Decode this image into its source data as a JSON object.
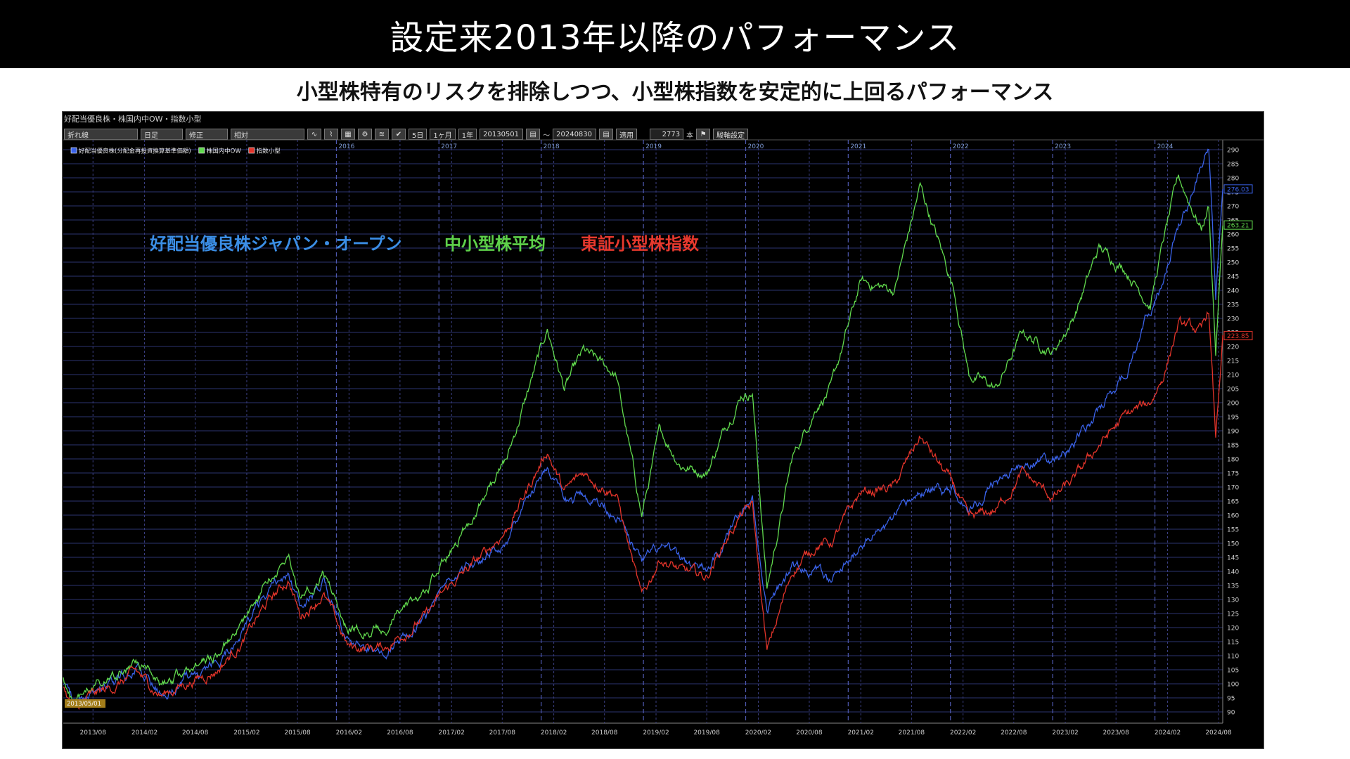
{
  "title": "設定来2013年以降のパフォーマンス",
  "subtitle": "小型株特有のリスクを排除しつつ、小型株指数を安定的に上回るパフォーマンス",
  "panel": {
    "title": "好配当優良株・株国内中OW・指数小型",
    "toolbar": {
      "field1": "折れ線",
      "field2": "日足",
      "field3": "修正",
      "field4": "相対",
      "btn_5d": "5日",
      "btn_1m": "1ヶ月",
      "btn_1y": "1年",
      "start_date": "20130501",
      "tilde": "〜",
      "end_date": "20240830",
      "apply": "適用",
      "count": "2773",
      "count_unit": "本",
      "settings": "駿軸設定"
    },
    "start_badge": "2013/05/01"
  },
  "annotations": [
    {
      "text": "好配当優良株ジャパン・オープン",
      "color": "#3b8ee6"
    },
    {
      "text": "中小型株平均",
      "color": "#5ed14a"
    },
    {
      "text": "東証小型株指数",
      "color": "#e8392e"
    }
  ],
  "chart_data": {
    "type": "line",
    "ylim": [
      86,
      292
    ],
    "yticks": [
      90,
      95,
      100,
      105,
      110,
      115,
      120,
      125,
      130,
      135,
      140,
      145,
      150,
      155,
      160,
      165,
      170,
      175,
      180,
      185,
      190,
      195,
      200,
      205,
      210,
      215,
      220,
      225,
      230,
      235,
      240,
      245,
      250,
      255,
      260,
      265,
      270,
      275,
      280,
      285,
      290
    ],
    "xlim": [
      "2013-05-01",
      "2024-08-30"
    ],
    "x_tick_labels": [
      "2013/08",
      "2014/02",
      "2014/08",
      "2015/02",
      "2015/08",
      "2016/02",
      "2016/08",
      "2017/02",
      "2017/08",
      "2018/02",
      "2018/08",
      "2019/02",
      "2019/08",
      "2020/02",
      "2020/08",
      "2021/02",
      "2021/08",
      "2022/02",
      "2022/08",
      "2023/02",
      "2023/08",
      "2024/02",
      "2024/08"
    ],
    "year_labels": [
      "2016",
      "2017",
      "2018",
      "2019",
      "2020",
      "2021",
      "2022",
      "2023",
      "2024"
    ],
    "grid": true,
    "legend_position": "top-left",
    "series": [
      {
        "name": "好配当優良株(分配金再投資換算基準価額)",
        "color": "#3a62e8",
        "last_value": "276.03",
        "points": [
          [
            "2013-05-01",
            100
          ],
          [
            "2013-06-05",
            92
          ],
          [
            "2013-08-01",
            97
          ],
          [
            "2013-11-01",
            101
          ],
          [
            "2014-01-15",
            106
          ],
          [
            "2014-04-15",
            97
          ],
          [
            "2014-08-01",
            103
          ],
          [
            "2014-11-01",
            107
          ],
          [
            "2015-02-01",
            118
          ],
          [
            "2015-05-01",
            133
          ],
          [
            "2015-07-15",
            140
          ],
          [
            "2015-08-25",
            127
          ],
          [
            "2015-11-15",
            136
          ],
          [
            "2016-02-12",
            115
          ],
          [
            "2016-06-24",
            113
          ],
          [
            "2016-08-01",
            116
          ],
          [
            "2016-11-15",
            122
          ],
          [
            "2017-02-01",
            135
          ],
          [
            "2017-06-01",
            145
          ],
          [
            "2017-09-01",
            152
          ],
          [
            "2018-01-23",
            178
          ],
          [
            "2018-03-25",
            163
          ],
          [
            "2018-06-01",
            167
          ],
          [
            "2018-09-25",
            161
          ],
          [
            "2018-12-26",
            142
          ],
          [
            "2019-03-01",
            148
          ],
          [
            "2019-05-15",
            144
          ],
          [
            "2019-08-15",
            140
          ],
          [
            "2019-10-15",
            150
          ],
          [
            "2019-12-15",
            163
          ],
          [
            "2020-01-25",
            166
          ],
          [
            "2020-03-17",
            127
          ],
          [
            "2020-06-15",
            141
          ],
          [
            "2020-09-15",
            140
          ],
          [
            "2020-11-01",
            135
          ],
          [
            "2021-02-15",
            150
          ],
          [
            "2021-06-15",
            158
          ],
          [
            "2021-09-15",
            168
          ],
          [
            "2022-01-15",
            170
          ],
          [
            "2022-03-08",
            162
          ],
          [
            "2022-06-15",
            172
          ],
          [
            "2022-09-15",
            178
          ],
          [
            "2023-01-01",
            180
          ],
          [
            "2023-03-15",
            185
          ],
          [
            "2023-06-15",
            197
          ],
          [
            "2023-09-15",
            210
          ],
          [
            "2023-12-15",
            233
          ],
          [
            "2024-02-01",
            243
          ],
          [
            "2024-03-25",
            263
          ],
          [
            "2024-06-15",
            283
          ],
          [
            "2024-07-11",
            289
          ],
          [
            "2024-08-05",
            236
          ],
          [
            "2024-08-30",
            276
          ]
        ]
      },
      {
        "name": "株国内中OW",
        "color": "#61d94d",
        "last_value": "263.21",
        "points": [
          [
            "2013-05-01",
            103
          ],
          [
            "2013-06-05",
            93
          ],
          [
            "2013-08-01",
            98
          ],
          [
            "2013-11-01",
            102
          ],
          [
            "2014-01-15",
            108
          ],
          [
            "2014-04-15",
            99
          ],
          [
            "2014-08-01",
            106
          ],
          [
            "2014-11-01",
            111
          ],
          [
            "2015-02-01",
            122
          ],
          [
            "2015-05-01",
            137
          ],
          [
            "2015-07-15",
            145
          ],
          [
            "2015-08-25",
            130
          ],
          [
            "2015-11-15",
            140
          ],
          [
            "2016-02-12",
            120
          ],
          [
            "2016-06-24",
            119
          ],
          [
            "2016-08-01",
            124
          ],
          [
            "2016-11-15",
            133
          ],
          [
            "2017-02-01",
            145
          ],
          [
            "2017-06-01",
            165
          ],
          [
            "2017-09-01",
            180
          ],
          [
            "2018-01-23",
            226
          ],
          [
            "2018-03-25",
            205
          ],
          [
            "2018-06-01",
            218
          ],
          [
            "2018-09-25",
            210
          ],
          [
            "2018-12-26",
            160
          ],
          [
            "2019-03-01",
            190
          ],
          [
            "2019-05-15",
            178
          ],
          [
            "2019-08-15",
            175
          ],
          [
            "2019-10-15",
            190
          ],
          [
            "2019-12-15",
            203
          ],
          [
            "2020-01-25",
            204
          ],
          [
            "2020-03-17",
            134
          ],
          [
            "2020-06-15",
            180
          ],
          [
            "2020-09-15",
            200
          ],
          [
            "2020-11-01",
            205
          ],
          [
            "2021-02-15",
            243
          ],
          [
            "2021-06-15",
            240
          ],
          [
            "2021-09-15",
            277
          ],
          [
            "2022-01-15",
            240
          ],
          [
            "2022-03-08",
            210
          ],
          [
            "2022-06-15",
            205
          ],
          [
            "2022-09-15",
            225
          ],
          [
            "2023-01-01",
            218
          ],
          [
            "2023-03-15",
            230
          ],
          [
            "2023-06-15",
            255
          ],
          [
            "2023-09-15",
            248
          ],
          [
            "2023-12-15",
            235
          ],
          [
            "2024-02-01",
            258
          ],
          [
            "2024-03-25",
            280
          ],
          [
            "2024-06-15",
            262
          ],
          [
            "2024-07-11",
            270
          ],
          [
            "2024-08-05",
            218
          ],
          [
            "2024-08-30",
            263
          ]
        ]
      },
      {
        "name": "指数小型",
        "color": "#e2342a",
        "last_value": "223.85",
        "points": [
          [
            "2013-05-01",
            100
          ],
          [
            "2013-06-05",
            90
          ],
          [
            "2013-08-01",
            95
          ],
          [
            "2013-11-01",
            99
          ],
          [
            "2014-01-15",
            104
          ],
          [
            "2014-04-15",
            96
          ],
          [
            "2014-08-01",
            101
          ],
          [
            "2014-11-01",
            105
          ],
          [
            "2015-02-01",
            115
          ],
          [
            "2015-05-01",
            129
          ],
          [
            "2015-07-15",
            137
          ],
          [
            "2015-08-25",
            124
          ],
          [
            "2015-11-15",
            132
          ],
          [
            "2016-02-12",
            113
          ],
          [
            "2016-06-24",
            113
          ],
          [
            "2016-08-01",
            116
          ],
          [
            "2016-11-15",
            124
          ],
          [
            "2017-02-01",
            134
          ],
          [
            "2017-06-01",
            145
          ],
          [
            "2017-09-01",
            155
          ],
          [
            "2018-01-23",
            183
          ],
          [
            "2018-03-25",
            168
          ],
          [
            "2018-06-01",
            175
          ],
          [
            "2018-09-25",
            168
          ],
          [
            "2018-12-26",
            130
          ],
          [
            "2019-03-01",
            145
          ],
          [
            "2019-05-15",
            140
          ],
          [
            "2019-08-15",
            138
          ],
          [
            "2019-10-15",
            150
          ],
          [
            "2019-12-15",
            160
          ],
          [
            "2020-01-25",
            163
          ],
          [
            "2020-03-17",
            111
          ],
          [
            "2020-06-15",
            140
          ],
          [
            "2020-09-15",
            150
          ],
          [
            "2020-11-01",
            150
          ],
          [
            "2021-02-15",
            168
          ],
          [
            "2021-06-15",
            170
          ],
          [
            "2021-09-15",
            188
          ],
          [
            "2022-01-15",
            170
          ],
          [
            "2022-03-08",
            158
          ],
          [
            "2022-06-15",
            162
          ],
          [
            "2022-09-15",
            175
          ],
          [
            "2023-01-01",
            166
          ],
          [
            "2023-03-15",
            172
          ],
          [
            "2023-06-15",
            185
          ],
          [
            "2023-09-15",
            195
          ],
          [
            "2023-12-15",
            200
          ],
          [
            "2024-02-01",
            210
          ],
          [
            "2024-03-25",
            228
          ],
          [
            "2024-06-15",
            225
          ],
          [
            "2024-07-11",
            233
          ],
          [
            "2024-08-05",
            187
          ],
          [
            "2024-08-30",
            224
          ]
        ]
      }
    ]
  }
}
